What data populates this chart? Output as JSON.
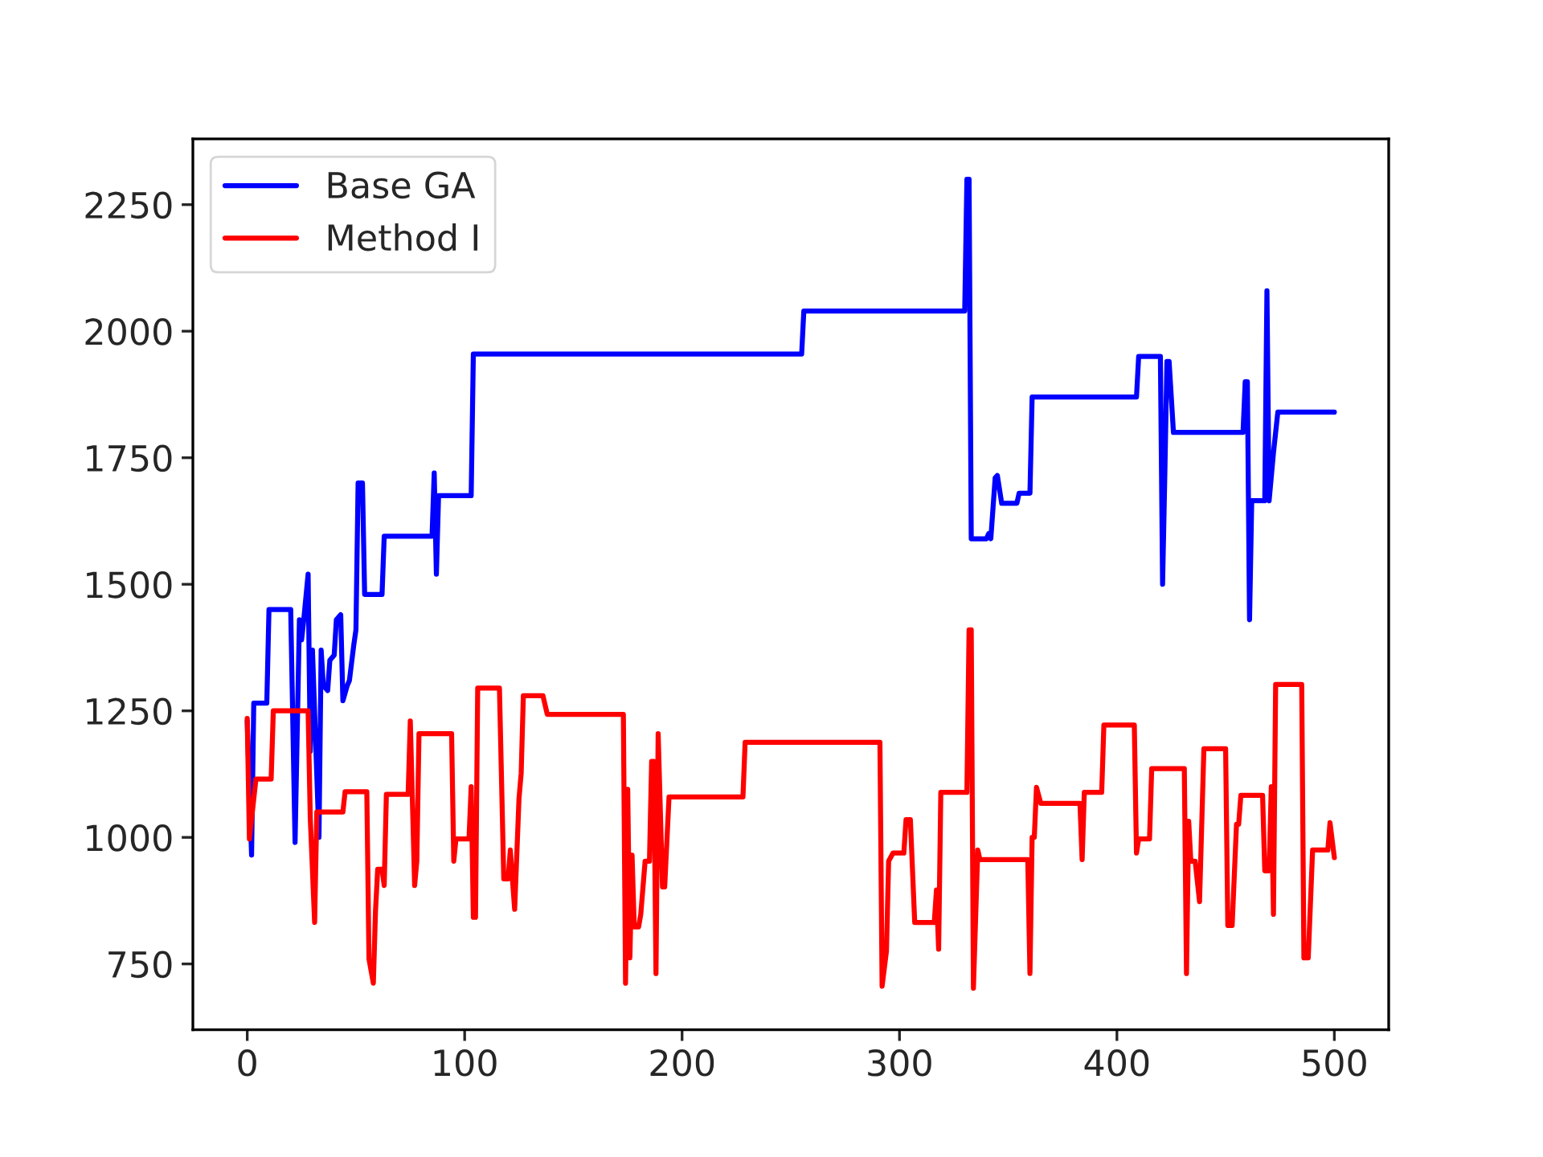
{
  "chart_data": {
    "type": "line",
    "xlim": [
      -25,
      525
    ],
    "xticks": [
      0,
      100,
      200,
      300,
      400,
      500
    ],
    "ylim": [
      620,
      2380
    ],
    "yticks": [
      750,
      1000,
      1250,
      1500,
      1750,
      2000,
      2250
    ],
    "grid": false,
    "legend": "top left",
    "marker": "none",
    "line_style": "solid",
    "series": [
      {
        "name": "Base GA",
        "color": "#0000ff",
        "x": [
          0,
          2,
          3,
          9,
          10,
          20,
          22,
          24,
          25,
          26,
          28,
          29,
          30,
          33,
          34,
          35,
          37,
          38,
          40,
          41,
          43,
          44,
          46,
          47,
          49,
          50,
          51,
          53,
          54,
          62,
          63,
          85,
          86,
          87,
          88,
          103,
          104,
          255,
          256,
          330,
          331,
          332,
          333,
          340,
          341,
          342,
          344,
          345,
          347,
          354,
          355,
          360,
          361,
          409,
          410,
          420,
          421,
          422,
          423,
          424,
          426,
          458,
          459,
          460,
          461,
          462,
          468,
          469,
          470,
          472,
          474,
          500
        ],
        "values": [
          1230,
          965,
          1265,
          1265,
          1450,
          1450,
          990,
          1430,
          1390,
          1430,
          1520,
          1170,
          1370,
          1000,
          1370,
          1300,
          1290,
          1350,
          1360,
          1430,
          1440,
          1270,
          1300,
          1310,
          1380,
          1410,
          1700,
          1700,
          1480,
          1480,
          1595,
          1595,
          1720,
          1520,
          1675,
          1675,
          1955,
          1955,
          2040,
          2040,
          2300,
          2300,
          1590,
          1590,
          1600,
          1590,
          1710,
          1715,
          1660,
          1660,
          1680,
          1680,
          1870,
          1870,
          1950,
          1950,
          1500,
          1710,
          1940,
          1940,
          1800,
          1800,
          1900,
          1900,
          1430,
          1665,
          1665,
          2080,
          1665,
          1760,
          1840,
          1840
        ]
      },
      {
        "name": "Method I",
        "color": "#ff0000",
        "x": [
          0,
          1,
          4,
          11,
          12,
          28,
          29,
          31,
          32,
          44,
          45,
          55,
          56,
          58,
          59,
          60,
          62,
          63,
          64,
          74,
          75,
          77,
          78,
          79,
          94,
          95,
          96,
          102,
          103,
          104,
          105,
          106,
          116,
          118,
          120,
          121,
          123,
          125,
          126,
          127,
          136,
          138,
          173,
          174,
          175,
          176,
          177,
          178,
          180,
          181,
          183,
          185,
          186,
          187,
          188,
          189,
          191,
          192,
          194,
          228,
          229,
          291,
          292,
          294,
          295,
          297,
          302,
          303,
          305,
          307,
          316,
          317,
          318,
          319,
          331,
          332,
          333,
          334,
          336,
          337,
          359,
          360,
          361,
          362,
          363,
          365,
          383,
          384,
          385,
          393,
          394,
          408,
          409,
          410,
          415,
          416,
          431,
          432,
          433,
          434,
          436,
          438,
          440,
          450,
          451,
          453,
          455,
          456,
          457,
          467,
          468,
          470,
          471,
          472,
          473,
          485,
          486,
          488,
          490,
          497,
          498,
          500
        ],
        "values": [
          1235,
          997,
          1115,
          1115,
          1250,
          1250,
          1038,
          832,
          1050,
          1050,
          1090,
          1090,
          760,
          712,
          855,
          937,
          937,
          905,
          1085,
          1085,
          1230,
          905,
          953,
          1205,
          1205,
          953,
          997,
          997,
          1100,
          842,
          842,
          1295,
          1295,
          918,
          918,
          975,
          858,
          1077,
          1127,
          1280,
          1280,
          1243,
          1243,
          712,
          1095,
          762,
          965,
          823,
          823,
          848,
          953,
          953,
          1150,
          1150,
          731,
          1205,
          902,
          902,
          1080,
          1080,
          1188,
          1188,
          706,
          775,
          953,
          969,
          969,
          1035,
          1035,
          832,
          832,
          896,
          779,
          1089,
          1089,
          1410,
          1410,
          702,
          975,
          956,
          956,
          731,
          1000,
          1000,
          1099,
          1067,
          1067,
          956,
          1089,
          1089,
          1222,
          1222,
          969,
          997,
          997,
          1136,
          1136,
          731,
          1032,
          953,
          953,
          873,
          1175,
          1175,
          826,
          826,
          1026,
          1026,
          1083,
          1083,
          934,
          934,
          1100,
          848,
          1302,
          1302,
          762,
          762,
          975,
          975,
          1029,
          960
        ]
      }
    ]
  }
}
